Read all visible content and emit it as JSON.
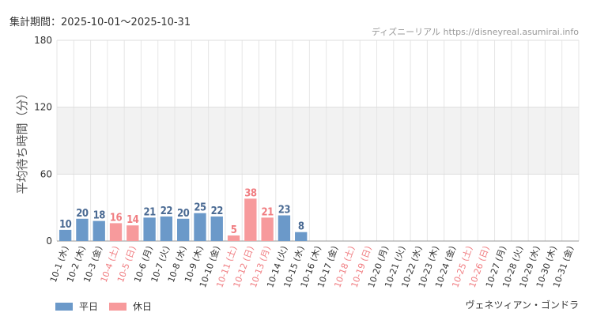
{
  "header": {
    "period": "集計期間：2025-10-01～2025-10-31",
    "site": "ディズニーリアル https://disneyreal.asumirai.info"
  },
  "footer": {
    "attraction": "ヴェネツィアン・ゴンドラ"
  },
  "colors": {
    "weekday": "#6b99c9",
    "holiday": "#f79a9c",
    "holiday_text": "#f07c80",
    "weekday_text": "#4a6a93",
    "band": "#f2f2f2",
    "grid": "#e6e6e6"
  },
  "chart_data": {
    "type": "bar",
    "ylabel": "平均待ち時間（分）",
    "ylim": [
      0,
      180
    ],
    "yticks": [
      0,
      60,
      120,
      180
    ],
    "band": [
      60,
      120
    ],
    "legend_position": "bottom-left",
    "legend": [
      {
        "key": "weekday",
        "label": "平日"
      },
      {
        "key": "holiday",
        "label": "休日"
      }
    ],
    "categories": [
      "10-1 (水)",
      "10-2 (木)",
      "10-3 (金)",
      "10-4 (土)",
      "10-5 (日)",
      "10-6 (月)",
      "10-7 (火)",
      "10-8 (水)",
      "10-9 (木)",
      "10-10 (金)",
      "10-11 (土)",
      "10-12 (日)",
      "10-13 (月)",
      "10-14 (火)",
      "10-15 (水)",
      "10-16 (木)",
      "10-17 (金)",
      "10-18 (土)",
      "10-19 (日)",
      "10-20 (月)",
      "10-21 (火)",
      "10-22 (水)",
      "10-23 (木)",
      "10-24 (金)",
      "10-25 (土)",
      "10-26 (日)",
      "10-27 (月)",
      "10-28 (火)",
      "10-29 (水)",
      "10-30 (木)",
      "10-31 (金)"
    ],
    "values": [
      10,
      20,
      18,
      16,
      14,
      21,
      22,
      20,
      25,
      22,
      5,
      38,
      21,
      23,
      8,
      null,
      null,
      null,
      null,
      null,
      null,
      null,
      null,
      null,
      null,
      null,
      null,
      null,
      null,
      null,
      null
    ],
    "holiday": [
      false,
      false,
      false,
      true,
      true,
      false,
      false,
      false,
      false,
      false,
      true,
      true,
      true,
      false,
      false,
      false,
      false,
      true,
      true,
      false,
      false,
      false,
      false,
      false,
      true,
      true,
      false,
      false,
      false,
      false,
      false
    ]
  }
}
